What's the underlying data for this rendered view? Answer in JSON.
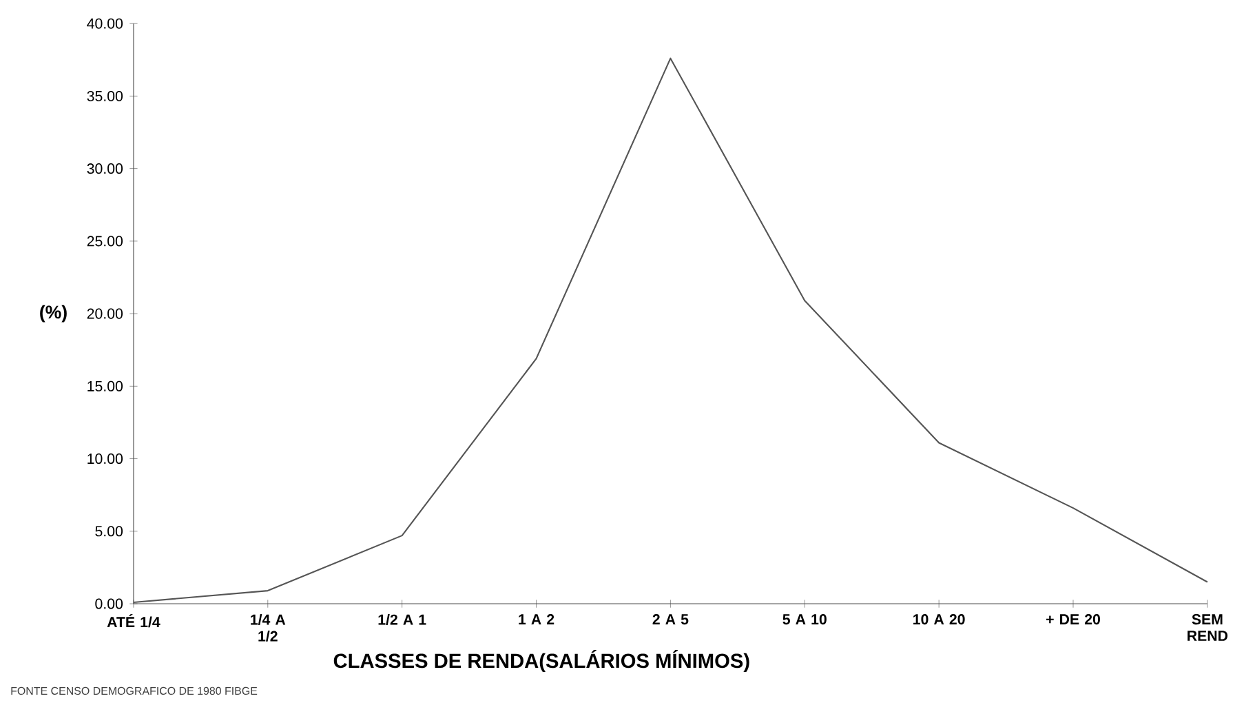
{
  "chart_data": {
    "type": "line",
    "categories": [
      "ATÉ 1/4",
      "1/4 A 1/2",
      "1/2 A 1",
      "1 A 2",
      "2 A 5",
      "5 A 10",
      "10 A 20",
      "+ DE 20",
      "SEM REND"
    ],
    "series": [
      {
        "color": "#555555",
        "values": [
          0.1,
          0.9,
          4.7,
          16.9,
          37.6,
          20.9,
          11.1,
          6.6,
          1.5
        ]
      }
    ],
    "ylim": [
      0,
      40
    ],
    "yticks": [
      {
        "value": 0,
        "label": "0.00"
      },
      {
        "value": 5,
        "label": "5.00"
      },
      {
        "value": 10,
        "label": "10.00"
      },
      {
        "value": 15,
        "label": "15.00"
      },
      {
        "value": 20,
        "label": "20.00"
      },
      {
        "value": 25,
        "label": "25.00"
      },
      {
        "value": 30,
        "label": "30.00"
      },
      {
        "value": 35,
        "label": "35.00"
      },
      {
        "value": 40,
        "label": "40.00"
      }
    ],
    "xlabel": "CLASSES DE RENDA(SALÁRIOS MÍNIMOS)",
    "ylabel": "(%)",
    "annotations": [
      "FONTE  CENSO DEMOGRAFICO DE 1980  FIBGE"
    ],
    "grid": false,
    "marker": "none",
    "line_style": "solid"
  }
}
